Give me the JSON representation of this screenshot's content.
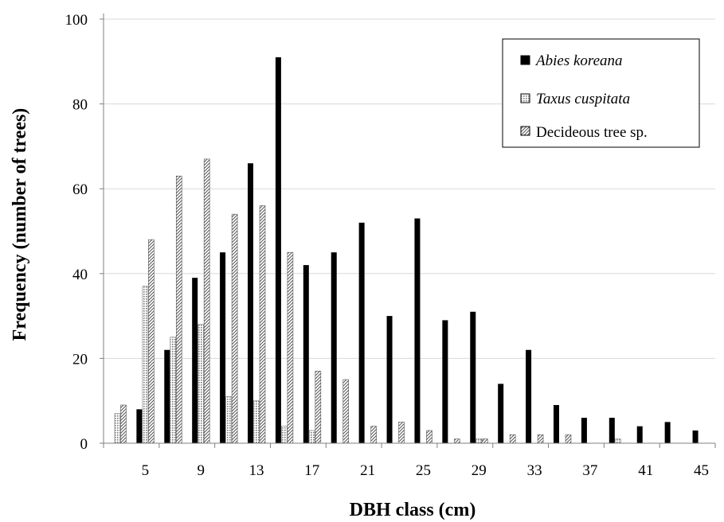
{
  "chart_data": {
    "type": "bar",
    "title": "",
    "xlabel": "DBH class (cm)",
    "ylabel": "Frequency (number of trees)",
    "ylim": [
      0,
      100
    ],
    "yticks": [
      0,
      20,
      40,
      60,
      80,
      100
    ],
    "grid": true,
    "legend_position": "top-right",
    "categories": [
      "3",
      "5",
      "7",
      "9",
      "11",
      "13",
      "15",
      "17",
      "19",
      "21",
      "23",
      "25",
      "27",
      "29",
      "31",
      "33",
      "35",
      "37",
      "39",
      "41",
      "43",
      "45"
    ],
    "x_tick_labels": [
      "5",
      "9",
      "13",
      "17",
      "21",
      "25",
      "29",
      "33",
      "37",
      "41",
      "45"
    ],
    "series": [
      {
        "name": "Abies koreana",
        "italic": true,
        "pattern": "solid-black",
        "values": [
          0,
          8,
          22,
          39,
          45,
          66,
          91,
          42,
          45,
          52,
          30,
          53,
          29,
          31,
          14,
          22,
          9,
          6,
          6,
          4,
          5,
          3
        ]
      },
      {
        "name": "Taxus cuspitata",
        "italic": true,
        "pattern": "dotted-grey",
        "values": [
          7,
          37,
          25,
          28,
          11,
          10,
          4,
          3,
          0,
          0,
          0,
          0,
          0,
          1,
          0,
          0,
          0,
          0,
          1,
          0,
          0,
          0
        ]
      },
      {
        "name": "Decideous tree sp.",
        "italic": false,
        "pattern": "diagonal-hatch",
        "values": [
          9,
          48,
          63,
          67,
          54,
          56,
          45,
          17,
          15,
          4,
          5,
          3,
          1,
          1,
          2,
          2,
          2,
          0,
          0,
          0,
          0,
          0
        ]
      }
    ],
    "colors": {
      "abies": "#000000",
      "taxus_dot": "#7a7a7a",
      "hatch": "#555555",
      "grid": "#d9d9d9",
      "axis": "#808080"
    }
  }
}
